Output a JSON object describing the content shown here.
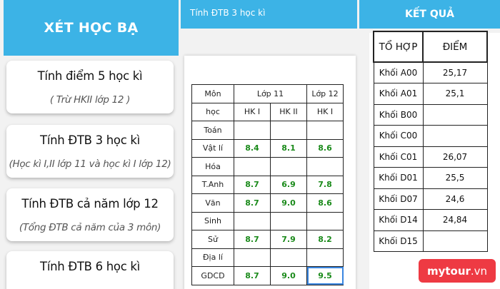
{
  "left": {
    "title": "XÉT HỌC BẠ",
    "cards": [
      {
        "title": "Tính điểm 5 học kì",
        "subtitle": "( Trừ HKII lớp 12 )"
      },
      {
        "title": "Tính ĐTB 3 học kì",
        "subtitle": "(Học kì I,II lớp 11 và học kì I lớp 12)"
      },
      {
        "title": "Tính ĐTB cả năm lớp 12",
        "subtitle": "(Tổng ĐTB cả năm của 3 môn)"
      },
      {
        "title": "Tính ĐTB 6 học kì",
        "subtitle": ""
      }
    ]
  },
  "middle": {
    "title": "Tính ĐTB 3 học kì",
    "table": {
      "mon": "Môn",
      "hoc": "học",
      "lop11": "Lớp 11",
      "lop12": "Lớp 12",
      "hk1": "HK I",
      "hk2": "HK II",
      "rows": [
        {
          "subject": "Toán",
          "v1": "",
          "v2": "",
          "v3": ""
        },
        {
          "subject": "Vật lí",
          "v1": "8.4",
          "v2": "8.1",
          "v3": "8.6"
        },
        {
          "subject": "Hóa",
          "v1": "",
          "v2": "",
          "v3": ""
        },
        {
          "subject": "T.Anh",
          "v1": "8.7",
          "v2": "6.9",
          "v3": "7.8"
        },
        {
          "subject": "Văn",
          "v1": "8.7",
          "v2": "9.0",
          "v3": "8.6"
        },
        {
          "subject": "Sinh",
          "v1": "",
          "v2": "",
          "v3": ""
        },
        {
          "subject": "Sử",
          "v1": "8.7",
          "v2": "7.9",
          "v3": "8.2"
        },
        {
          "subject": "Địa lí",
          "v1": "",
          "v2": "",
          "v3": ""
        },
        {
          "subject": "GDCD",
          "v1": "8.7",
          "v2": "9.0",
          "v3": "9.5"
        }
      ]
    }
  },
  "right": {
    "title": "KẾT QUẢ",
    "table": {
      "col1": "TỔ HỢP",
      "col2": "ĐIỂM",
      "rows": [
        {
          "block": "Khối A00",
          "score": "25,17"
        },
        {
          "block": "Khối A01",
          "score": "25,1"
        },
        {
          "block": "Khối B00",
          "score": ""
        },
        {
          "block": "Khối C00",
          "score": ""
        },
        {
          "block": "Khối C01",
          "score": "26,07"
        },
        {
          "block": "Khối D01",
          "score": "25,5"
        },
        {
          "block": "Khối D07",
          "score": "24,6"
        },
        {
          "block": "Khối D14",
          "score": "24,84"
        },
        {
          "block": "Khối D15",
          "score": ""
        }
      ]
    }
  },
  "watermark": {
    "brand": "mytour",
    "tld": ".vn"
  },
  "colors": {
    "header_blue": "#3cb3e6",
    "score_green": "#1a8a1a",
    "watermark_red": "#ee3a43"
  }
}
